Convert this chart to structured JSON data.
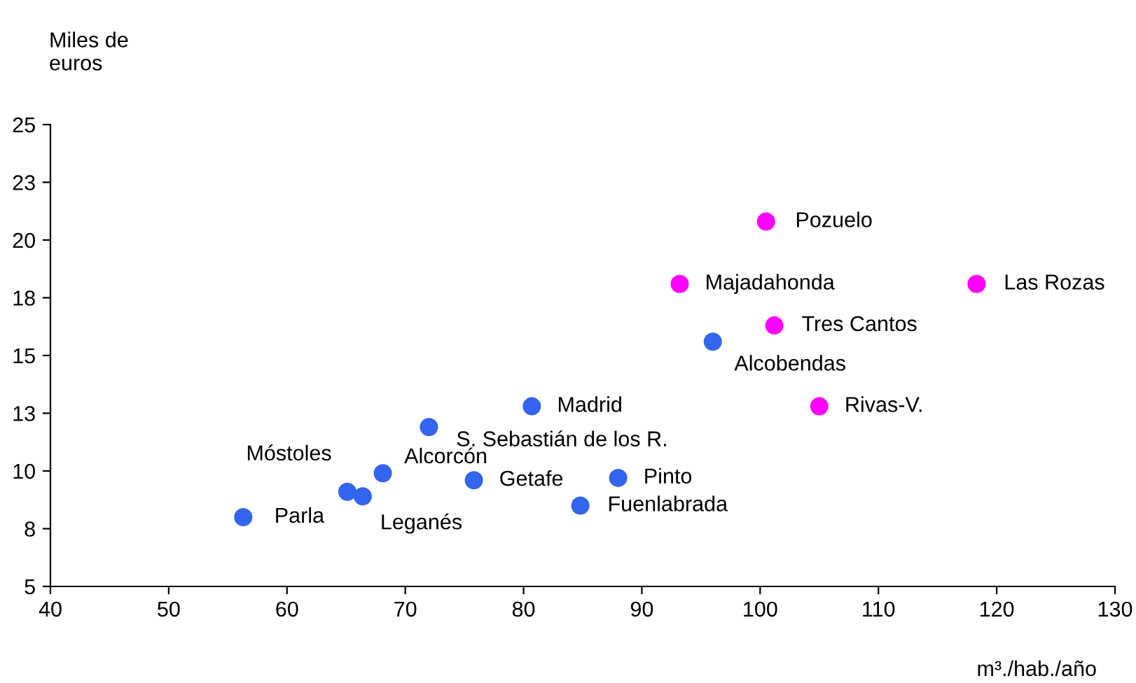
{
  "chart_data": {
    "type": "scatter",
    "ylabel": "Miles de\neuros",
    "xlabel": "m³./hab./año",
    "marker": "circle",
    "grid": false,
    "legend": false,
    "xlim": [
      40,
      130
    ],
    "xticks": [
      40,
      50,
      60,
      70,
      80,
      90,
      100,
      110,
      120,
      130
    ],
    "ylim": [
      5,
      25
    ],
    "yticks": [
      5,
      {
        "value": 7.5,
        "label": "8"
      },
      10,
      {
        "value": 12.5,
        "label": "13"
      },
      15,
      {
        "value": 17.5,
        "label": "18"
      },
      20,
      {
        "value": 22.5,
        "label": "23"
      },
      25
    ],
    "series": [
      {
        "color": "#3366ee",
        "x": [
          56.3,
          65.1,
          66.4,
          68.1,
          72.0,
          75.8,
          80.7,
          84.8,
          88.0,
          96.0
        ],
        "values": [
          8.0,
          9.1,
          8.9,
          9.9,
          11.9,
          9.6,
          12.8,
          8.5,
          9.7,
          15.6
        ]
      },
      {
        "color": "#ff00ff",
        "x": [
          93.2,
          100.5,
          101.2,
          105.0,
          118.3
        ],
        "values": [
          18.1,
          20.8,
          16.3,
          12.8,
          18.1
        ]
      }
    ],
    "annotations": [
      {
        "text": "Parla",
        "x": 56.3,
        "y": 8.0
      },
      {
        "text": "Móstoles",
        "x": 65.1,
        "y": 9.1
      },
      {
        "text": "Leganés",
        "x": 66.4,
        "y": 8.9
      },
      {
        "text": "Alcorcón",
        "x": 68.1,
        "y": 9.9
      },
      {
        "text": "S. Sebastián de los R.",
        "x": 72.0,
        "y": 11.9
      },
      {
        "text": "Getafe",
        "x": 75.8,
        "y": 9.6
      },
      {
        "text": "Madrid",
        "x": 80.7,
        "y": 12.8
      },
      {
        "text": "Fuenlabrada",
        "x": 84.8,
        "y": 8.5
      },
      {
        "text": "Pinto",
        "x": 88.0,
        "y": 9.7
      },
      {
        "text": "Alcobendas",
        "x": 96.0,
        "y": 15.6
      },
      {
        "text": "Majadahonda",
        "x": 93.2,
        "y": 18.1
      },
      {
        "text": "Pozuelo",
        "x": 100.5,
        "y": 20.8
      },
      {
        "text": "Tres Cantos",
        "x": 101.2,
        "y": 16.3
      },
      {
        "text": "Rivas-V.",
        "x": 105.0,
        "y": 12.8
      },
      {
        "text": "Las Rozas",
        "x": 118.3,
        "y": 18.1
      }
    ]
  }
}
